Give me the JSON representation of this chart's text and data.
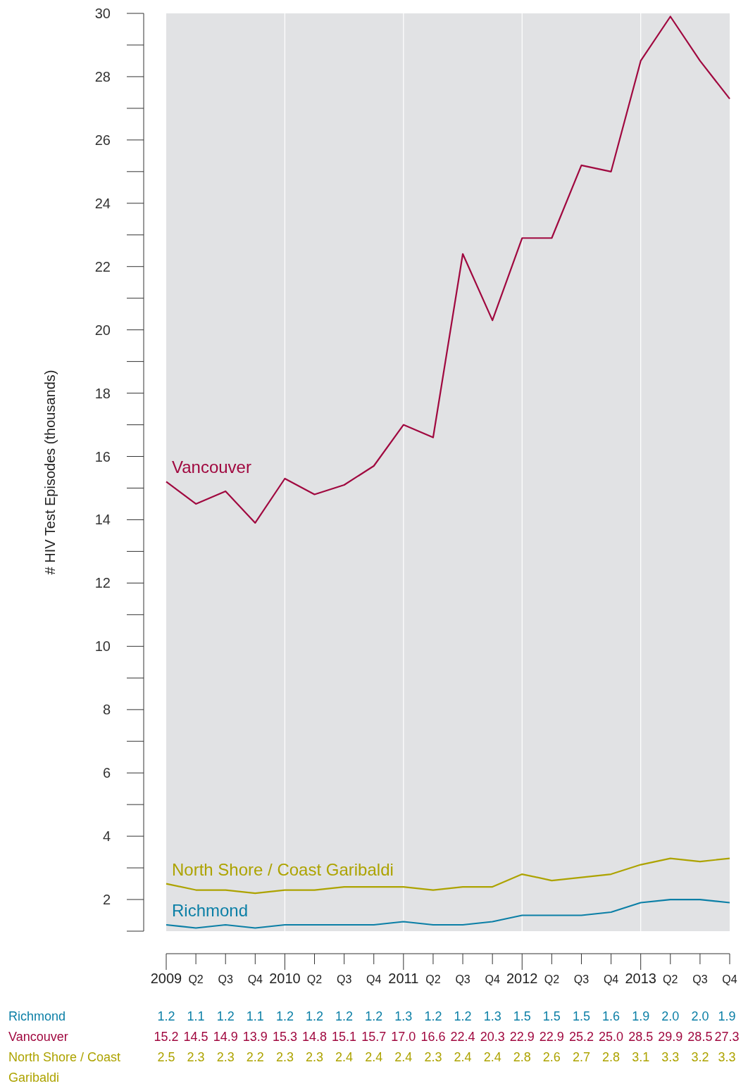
{
  "chart_data": {
    "type": "line",
    "ylabel": "# HIV Test Episodes (thousands)",
    "categories": [
      "2009",
      "Q2",
      "Q3",
      "Q4",
      "2010",
      "Q2",
      "Q3",
      "Q4",
      "2011",
      "Q2",
      "Q3",
      "Q4",
      "2012",
      "Q2",
      "Q3",
      "Q4",
      "2013",
      "Q2",
      "Q3",
      "Q4"
    ],
    "series": [
      {
        "name": "Richmond",
        "color": "#0b7fa6",
        "values": [
          1.2,
          1.1,
          1.2,
          1.1,
          1.2,
          1.2,
          1.2,
          1.2,
          1.3,
          1.2,
          1.2,
          1.3,
          1.5,
          1.5,
          1.5,
          1.6,
          1.9,
          2.0,
          2.0,
          1.9
        ],
        "value_labels": [
          "1.2",
          "1.1",
          "1.2",
          "1.1",
          "1.2",
          "1.2",
          "1.2",
          "1.2",
          "1.3",
          "1.2",
          "1.2",
          "1.3",
          "1.5",
          "1.5",
          "1.5",
          "1.6",
          "1.9",
          "2.0",
          "2.0",
          "1.9"
        ]
      },
      {
        "name": "Vancouver",
        "color": "#a0083f",
        "values": [
          15.2,
          14.5,
          14.9,
          13.9,
          15.3,
          14.8,
          15.1,
          15.7,
          17.0,
          16.6,
          22.4,
          20.3,
          22.9,
          22.9,
          25.2,
          25.0,
          28.5,
          29.9,
          28.5,
          27.3
        ],
        "value_labels": [
          "15.2",
          "14.5",
          "14.9",
          "13.9",
          "15.3",
          "14.8",
          "15.1",
          "15.7",
          "17.0",
          "16.6",
          "22.4",
          "20.3",
          "22.9",
          "22.9",
          "25.2",
          "25.0",
          "28.5",
          "29.9",
          "28.5",
          "27.3"
        ]
      },
      {
        "name": "North Shore / Coast Garibaldi",
        "color": "#ada300",
        "values": [
          2.5,
          2.3,
          2.3,
          2.2,
          2.3,
          2.3,
          2.4,
          2.4,
          2.4,
          2.3,
          2.4,
          2.4,
          2.8,
          2.6,
          2.7,
          2.8,
          3.1,
          3.3,
          3.2,
          3.3
        ],
        "value_labels": [
          "2.5",
          "2.3",
          "2.3",
          "2.2",
          "2.3",
          "2.3",
          "2.4",
          "2.4",
          "2.4",
          "2.3",
          "2.4",
          "2.4",
          "2.8",
          "2.6",
          "2.7",
          "2.8",
          "3.1",
          "3.3",
          "3.2",
          "3.3"
        ]
      }
    ],
    "ylim": [
      1,
      30
    ],
    "yticks": [
      2,
      4,
      6,
      8,
      10,
      12,
      14,
      16,
      18,
      20,
      22,
      24,
      26,
      28,
      30
    ],
    "grid": "x",
    "marker": "none",
    "line_style": "solid"
  }
}
